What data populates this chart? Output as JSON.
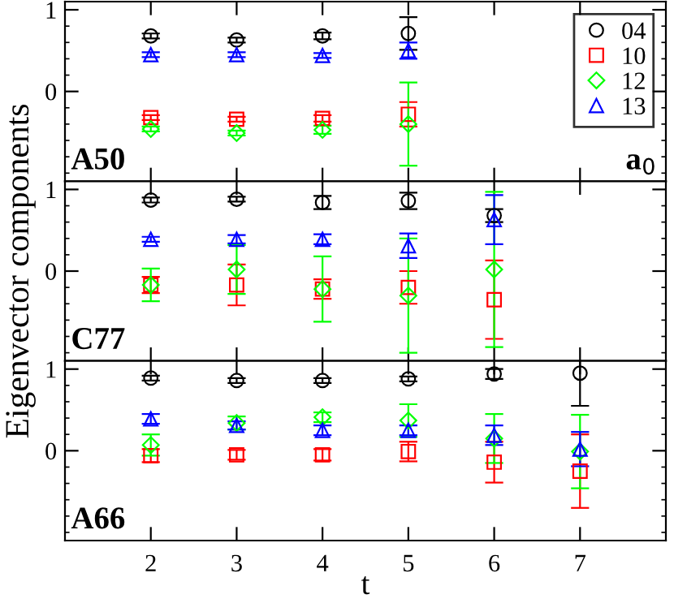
{
  "chart_data": [
    {
      "type": "scatter",
      "x": [
        2,
        3,
        4,
        5
      ],
      "xlim": [
        1,
        8
      ],
      "xticks": [
        2,
        3,
        4,
        5,
        6,
        7
      ],
      "ylim": [
        -1.1,
        1.1
      ],
      "yticks": [
        0,
        1
      ],
      "tick_labels": "y",
      "legend": "top right",
      "annotations": [
        "A50",
        "a$_{0}$"
      ],
      "series": [
        {
          "name": "04",
          "color": "#000000",
          "marker": "circle",
          "values": [
            0.68,
            0.63,
            0.68,
            0.71
          ],
          "errors": [
            0.03,
            0.03,
            0.04,
            0.2
          ]
        },
        {
          "name": "10",
          "color": "#ff0000",
          "marker": "square",
          "values": [
            -0.32,
            -0.34,
            -0.33,
            -0.28
          ],
          "errors": [
            0.03,
            0.03,
            0.04,
            0.15
          ]
        },
        {
          "name": "12",
          "color": "#00ff00",
          "marker": "diamond",
          "values": [
            -0.46,
            -0.51,
            -0.47,
            -0.4
          ],
          "errors": [
            0.03,
            0.03,
            0.05,
            0.51
          ]
        },
        {
          "name": "13",
          "color": "#0000ff",
          "marker": "triangle",
          "values": [
            0.45,
            0.45,
            0.44,
            0.5
          ],
          "errors": [
            0.03,
            0.03,
            0.03,
            0.1
          ]
        }
      ]
    },
    {
      "type": "scatter",
      "x": [
        2,
        3,
        4,
        5,
        6
      ],
      "xlim": [
        1,
        8
      ],
      "xticks": [
        2,
        3,
        4,
        5,
        6,
        7
      ],
      "ylim": [
        -1.1,
        1.1
      ],
      "yticks": [
        0,
        1
      ],
      "tick_labels": "y",
      "ylabel": "Eigenvector components",
      "annotations": [
        "C77"
      ],
      "series": [
        {
          "color": "#000000",
          "marker": "circle",
          "values": [
            0.87,
            0.88,
            0.84,
            0.86,
            0.68
          ],
          "errors": [
            0.03,
            0.03,
            0.08,
            0.1,
            0.08
          ]
        },
        {
          "color": "#ff0000",
          "marker": "square",
          "values": [
            -0.17,
            -0.17,
            -0.22,
            -0.2,
            -0.35
          ],
          "errors": [
            0.1,
            0.25,
            0.12,
            0.2,
            0.48
          ]
        },
        {
          "color": "#00ff00",
          "marker": "diamond",
          "values": [
            -0.17,
            0.02,
            -0.22,
            -0.3,
            0.02
          ],
          "errors": [
            0.2,
            0.3,
            0.4,
            0.7,
            0.95
          ]
        },
        {
          "color": "#0000ff",
          "marker": "triangle",
          "values": [
            0.39,
            0.39,
            0.39,
            0.31,
            0.63
          ],
          "errors": [
            0.03,
            0.05,
            0.06,
            0.15,
            0.3
          ]
        }
      ]
    },
    {
      "type": "scatter",
      "x": [
        2,
        3,
        4,
        5,
        6,
        7
      ],
      "xlim": [
        1,
        8
      ],
      "xticks": [
        2,
        3,
        4,
        5,
        6,
        7
      ],
      "ylim": [
        -1.1,
        1.1
      ],
      "yticks": [
        0,
        1
      ],
      "xlabel": "t",
      "annotations": [
        "A66"
      ],
      "series": [
        {
          "color": "#000000",
          "marker": "circle",
          "values": [
            0.89,
            0.86,
            0.86,
            0.88,
            0.94,
            0.95
          ],
          "errors": [
            0.03,
            0.03,
            0.03,
            0.03,
            0.06,
            0.4
          ]
        },
        {
          "color": "#ff0000",
          "marker": "square",
          "values": [
            -0.06,
            -0.05,
            -0.05,
            -0.01,
            -0.14,
            -0.25
          ],
          "errors": [
            0.08,
            0.06,
            0.07,
            0.12,
            0.25,
            0.45
          ]
        },
        {
          "color": "#00ff00",
          "marker": "diamond",
          "values": [
            0.07,
            0.34,
            0.41,
            0.37,
            0.15,
            -0.01
          ],
          "errors": [
            0.13,
            0.08,
            0.06,
            0.2,
            0.3,
            0.45
          ]
        },
        {
          "color": "#0000ff",
          "marker": "triangle",
          "values": [
            0.39,
            0.31,
            0.25,
            0.25,
            0.19,
            0.02
          ],
          "errors": [
            0.06,
            0.05,
            0.06,
            0.06,
            0.12,
            0.21
          ]
        }
      ]
    }
  ]
}
